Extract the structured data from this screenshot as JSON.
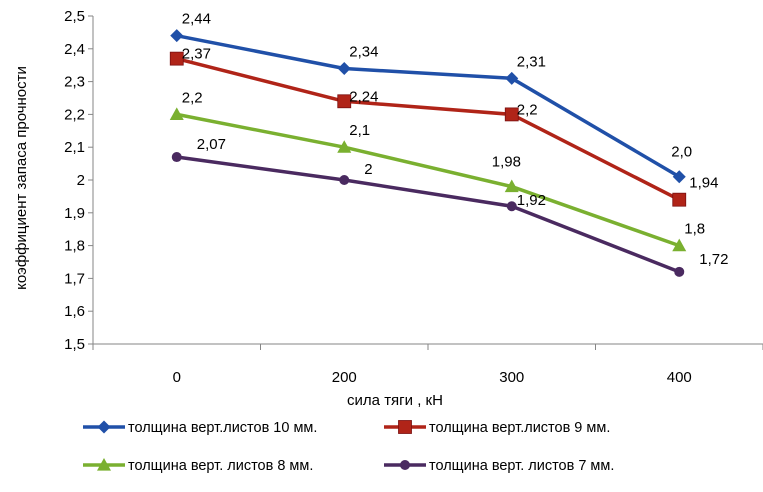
{
  "chart_data": {
    "type": "line",
    "categories": [
      "0",
      "200",
      "300",
      "400"
    ],
    "series": [
      {
        "name": "толщина верт.листов 10 мм.",
        "values": [
          2.44,
          2.34,
          2.31,
          2.01
        ],
        "labels": [
          "2,44",
          "2,34",
          "2,31",
          "2,0"
        ],
        "color": "#2050a8",
        "marker": "diamond"
      },
      {
        "name": "толщина верт.листов 9 мм.",
        "values": [
          2.37,
          2.24,
          2.2,
          1.94
        ],
        "labels": [
          "2,37",
          "2,24",
          "2,2",
          "1,94"
        ],
        "color": "#b02418",
        "marker": "square"
      },
      {
        "name": "толщина верт. листов 8 мм.",
        "values": [
          2.2,
          2.1,
          1.98,
          1.8
        ],
        "labels": [
          "2,2",
          "2,1",
          "1,98",
          "1,8"
        ],
        "color": "#7ab030",
        "marker": "triangle"
      },
      {
        "name": "толщина верт. листов 7 мм.",
        "values": [
          2.07,
          2.0,
          1.92,
          1.72
        ],
        "labels": [
          "2,07",
          "2",
          "1,92",
          "1,72"
        ],
        "color": "#4a2a60",
        "marker": "circle"
      }
    ],
    "xlabel": "сила тяги , кН",
    "ylabel": "коэффициент запаса прочности",
    "ylim": [
      1.5,
      2.5
    ],
    "yticks": [
      1.5,
      1.6,
      1.7,
      1.8,
      1.9,
      2.0,
      2.1,
      2.2,
      2.3,
      2.4,
      2.5
    ],
    "ytick_labels": [
      "1,5",
      "1,6",
      "1,7",
      "1,8",
      "1,9",
      "2",
      "2,1",
      "2,2",
      "2,3",
      "2,4",
      "2,5"
    ],
    "grid": false,
    "legend": "bottom"
  }
}
